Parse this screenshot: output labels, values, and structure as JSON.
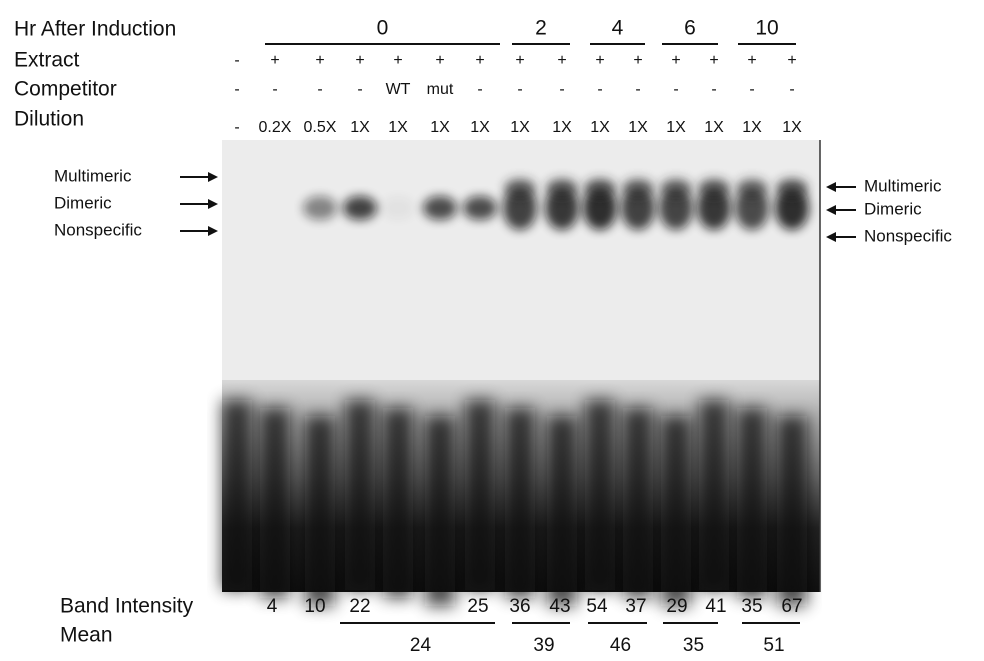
{
  "rows": [
    {
      "label": "Hr After Induction",
      "groups": [
        "0",
        "2",
        "4",
        "6",
        "10"
      ]
    },
    {
      "label": "Extract",
      "lanes": [
        "-",
        "+",
        "+",
        "+",
        "+",
        "+",
        "+",
        "+",
        "+",
        "+",
        "+",
        "+",
        "+",
        "+",
        "+"
      ]
    },
    {
      "label": "Competitor",
      "lanes": [
        "-",
        "-",
        "-",
        "-",
        "WT",
        "mut",
        "-",
        "-",
        "-",
        "-",
        "-",
        "-",
        "-",
        "-",
        "-"
      ]
    },
    {
      "label": "Dilution",
      "lanes": [
        "-",
        "0.2X",
        "0.5X",
        "1X",
        "1X",
        "1X",
        "1X",
        "1X",
        "1X",
        "1X",
        "1X",
        "1X",
        "1X",
        "1X",
        "1X"
      ]
    }
  ],
  "left_markers": [
    "Multimeric",
    "Dimeric",
    "Nonspecific"
  ],
  "right_markers": [
    "Multimeric",
    "Dimeric",
    "Nonspecific"
  ],
  "band_intensity": {
    "label": "Band Intensity",
    "values": [
      4,
      10,
      22,
      25,
      36,
      43,
      54,
      37,
      29,
      41,
      35,
      67
    ]
  },
  "mean": {
    "label": "Mean",
    "values": [
      24,
      39,
      46,
      35,
      51
    ]
  }
}
